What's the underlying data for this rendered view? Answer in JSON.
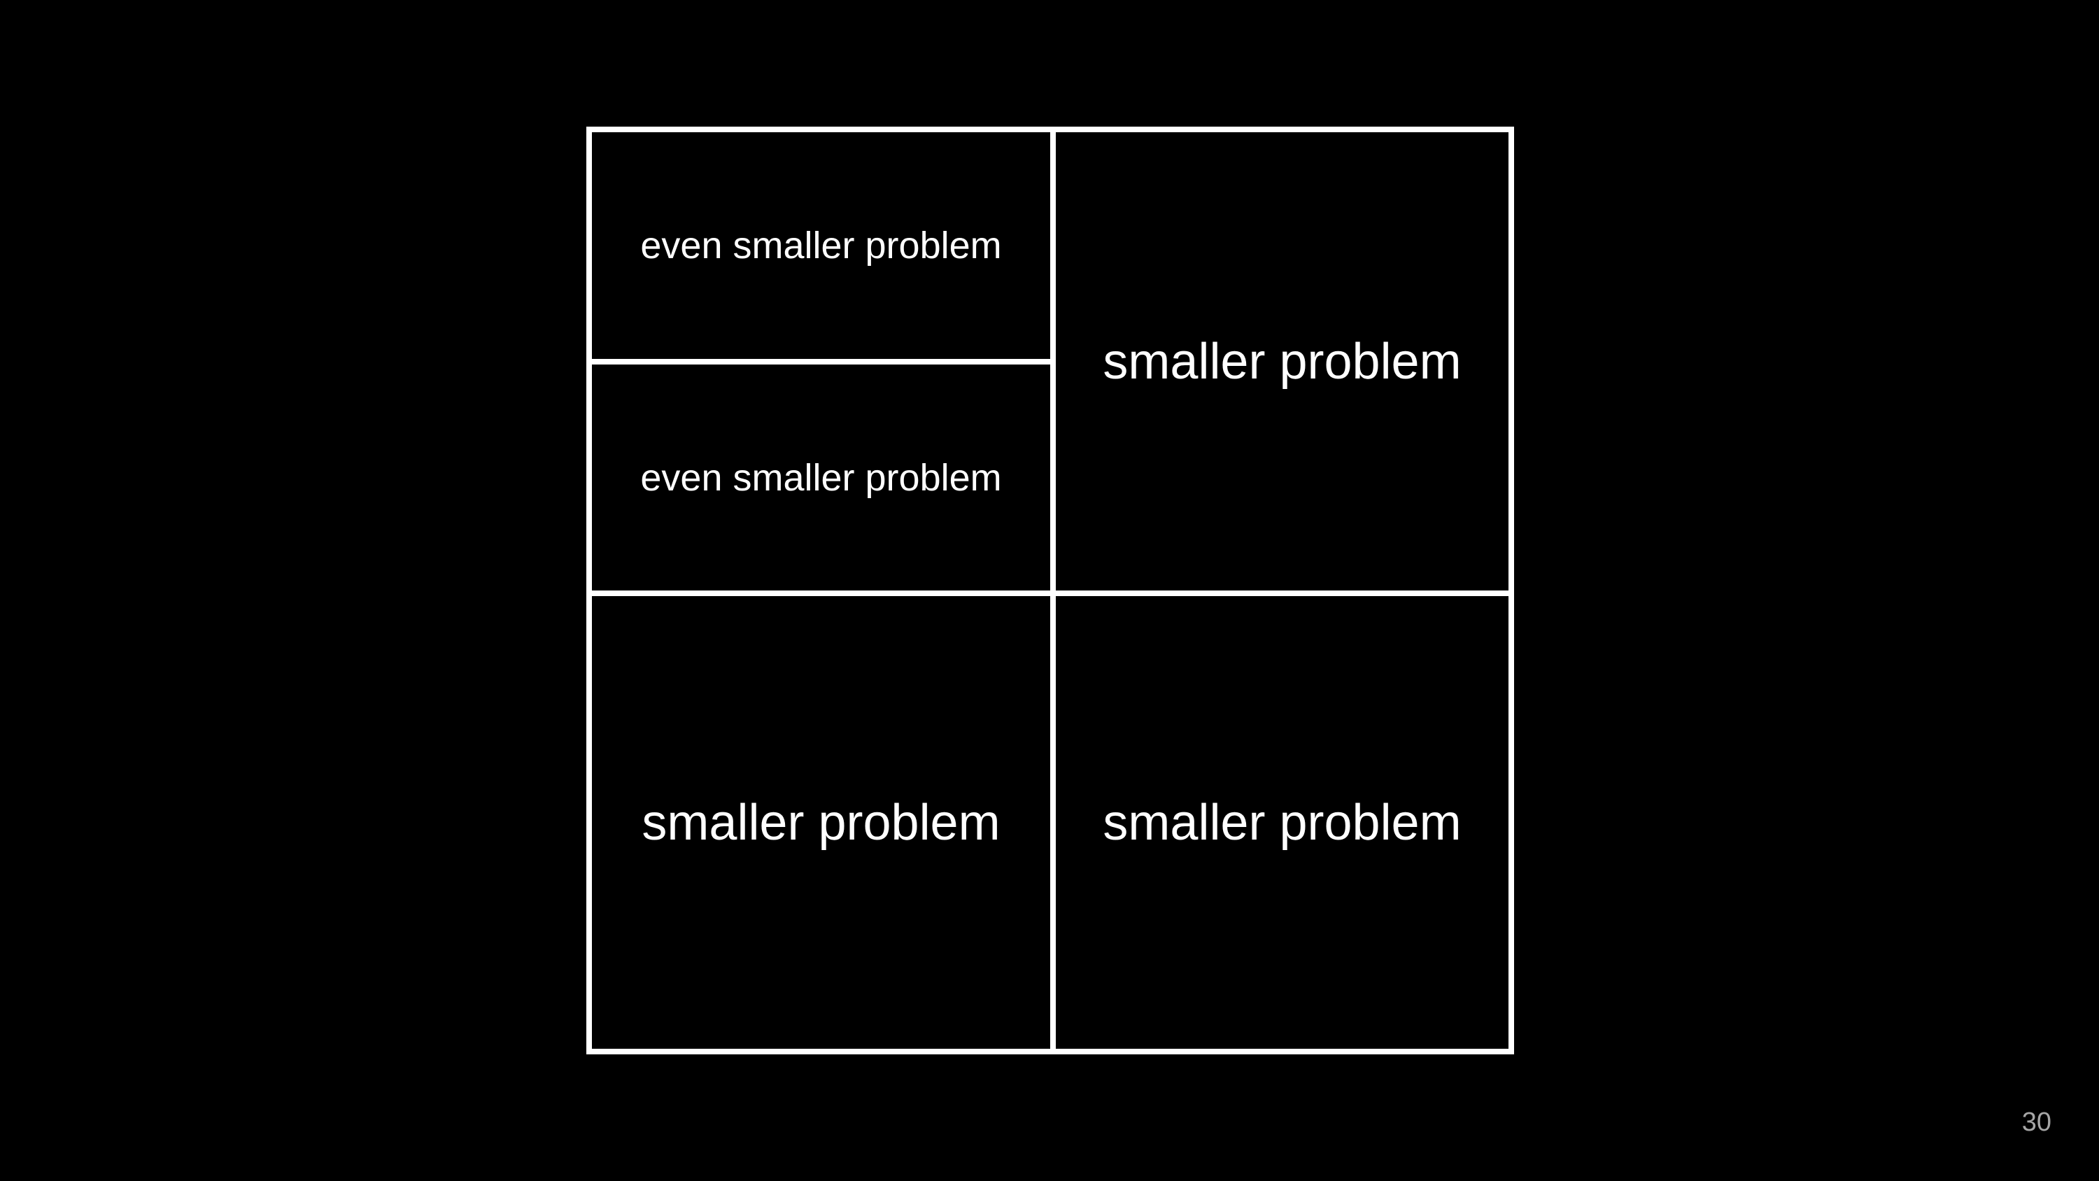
{
  "diagram": {
    "quadrants": {
      "top_left_top": "even smaller problem",
      "top_left_bottom": "even smaller problem",
      "top_right": "smaller problem",
      "bottom_left": "smaller problem",
      "bottom_right": "smaller problem"
    },
    "colors": {
      "background": "#000000",
      "lines": "#ffffff",
      "text": "#ffffff"
    }
  },
  "slide": {
    "page_number": "30"
  }
}
